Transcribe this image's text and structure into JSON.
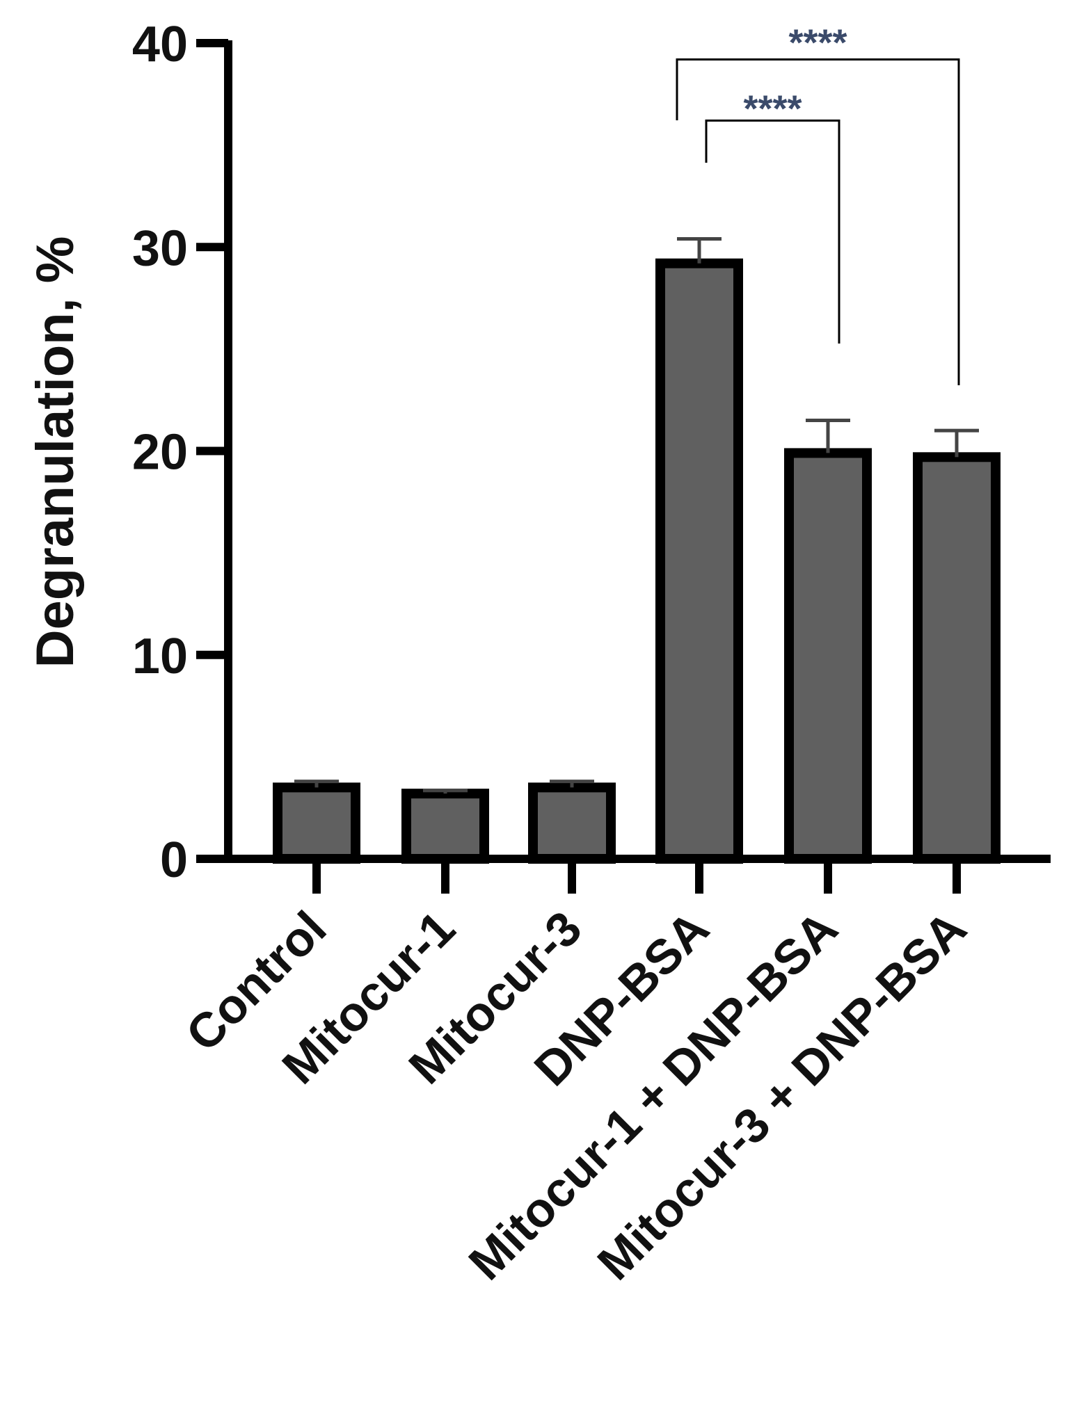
{
  "chart_data": {
    "type": "bar",
    "categories": [
      "Control",
      "Mitocur-1",
      "Mitocur-3",
      "DNP-BSA",
      "Mitocur-1 + DNP-BSA",
      "Mitocur-3 + DNP-BSA"
    ],
    "values": [
      3.5,
      3.2,
      3.5,
      29.2,
      19.9,
      19.7
    ],
    "errors": [
      0.3,
      0.15,
      0.3,
      1.2,
      1.6,
      1.3
    ],
    "ylabel": "Degranulation, %",
    "ylim": [
      0,
      40
    ],
    "yticks": [
      0,
      10,
      20,
      30,
      40
    ],
    "grid": false,
    "bar_color": "#606060",
    "edge_color": "#000000",
    "significance": [
      {
        "from": 3,
        "to": 4,
        "label": "****",
        "y": 36.2
      },
      {
        "from": 3,
        "to": 5,
        "label": "****",
        "y": 39.2
      }
    ]
  }
}
